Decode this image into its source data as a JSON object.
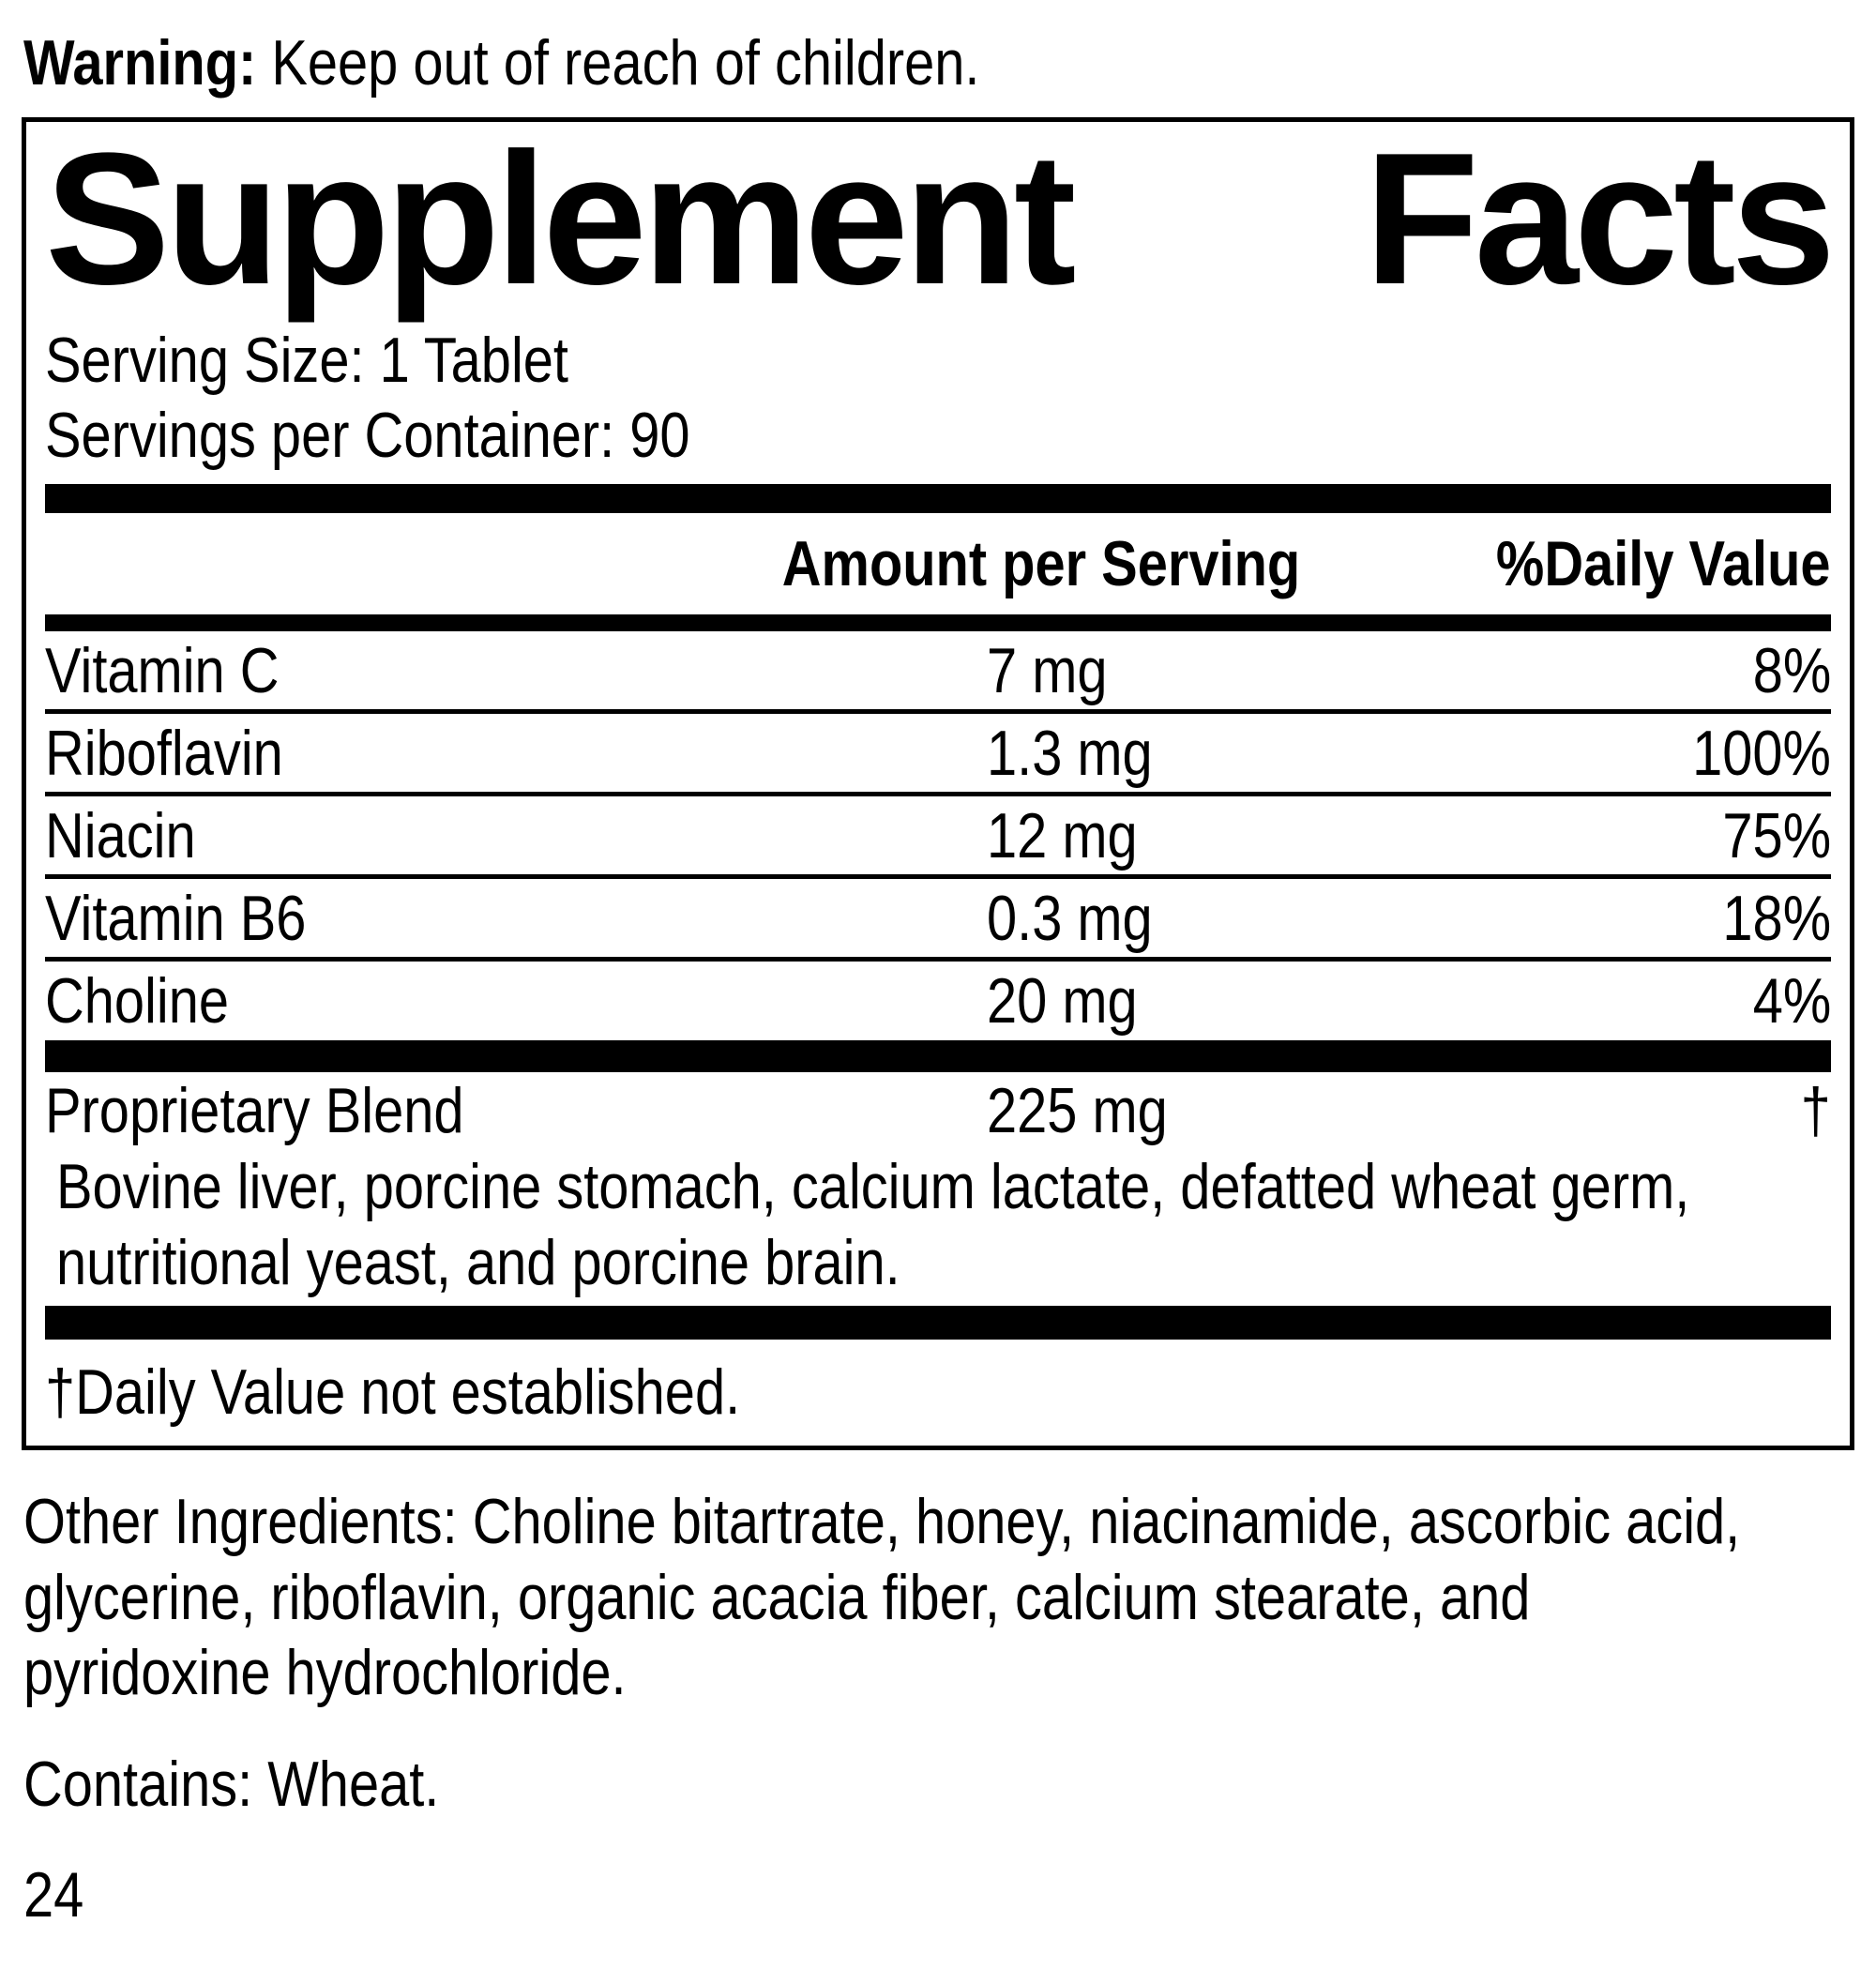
{
  "warning": {
    "label": "Warning:",
    "text": " Keep out of reach of children."
  },
  "panel": {
    "title_words": [
      "Supplement",
      "Facts"
    ],
    "serving_size": "Serving Size: 1 Tablet",
    "servings_per_container": "Servings per Container: 90",
    "columns": {
      "amount": "Amount per Serving",
      "daily_value": "%Daily Value"
    },
    "rows": [
      {
        "name": "Vitamin C",
        "amount": "7 mg",
        "dv": "8%"
      },
      {
        "name": "Riboflavin",
        "amount": "1.3 mg",
        "dv": "100%"
      },
      {
        "name": "Niacin",
        "amount": "12 mg",
        "dv": "75%"
      },
      {
        "name": "Vitamin B6",
        "amount": "0.3 mg",
        "dv": "18%"
      },
      {
        "name": "Choline",
        "amount": "20 mg",
        "dv": "4%"
      }
    ],
    "blend": {
      "name": "Proprietary Blend",
      "amount": "225 mg",
      "dv": "†",
      "description": "Bovine liver, porcine stomach, calcium lactate, defatted wheat germ, nutritional yeast, and porcine brain."
    },
    "footnote": "†Daily Value not established."
  },
  "other_ingredients": "Other Ingredients: Choline bitartrate, honey, niacinamide, ascorbic acid, glycerine, riboflavin, organic acacia fiber, calcium stearate, and pyridoxine hydrochloride.",
  "contains": "Contains: Wheat.",
  "page_number": "24",
  "colors": {
    "text": "#000000",
    "background": "#ffffff"
  }
}
